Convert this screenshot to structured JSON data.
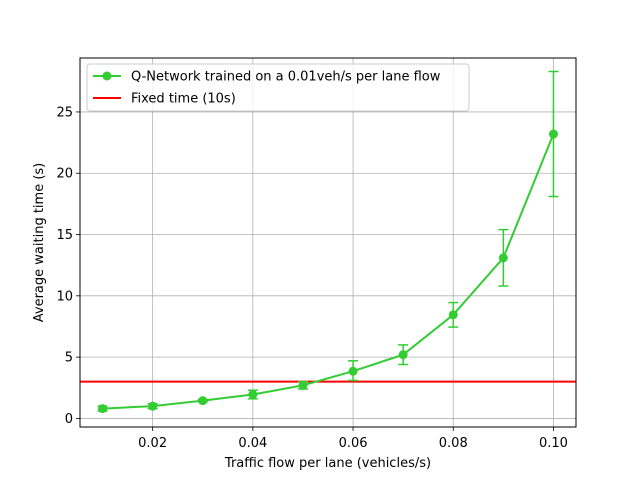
{
  "chart_data": {
    "type": "line",
    "title": "",
    "xlabel": "Traffic flow per lane (vehicles/s)",
    "ylabel": "Average waiting time (s)",
    "xlim": [
      0.0055,
      0.1045
    ],
    "ylim": [
      -0.7,
      29.4
    ],
    "xticks": [
      0.02,
      0.04,
      0.06,
      0.08,
      0.1
    ],
    "xtick_labels": [
      "0.02",
      "0.04",
      "0.06",
      "0.08",
      "0.10"
    ],
    "yticks": [
      0,
      5,
      10,
      15,
      20,
      25
    ],
    "ytick_labels": [
      "0",
      "5",
      "10",
      "15",
      "20",
      "25"
    ],
    "grid": true,
    "legend_position": "top-left",
    "series": [
      {
        "name": "Q-Network trained on a 0.01veh/s per lane flow",
        "color": "#33cc33",
        "marker": "circle",
        "x": [
          0.01,
          0.02,
          0.03,
          0.04,
          0.05,
          0.06,
          0.07,
          0.08,
          0.09,
          0.1
        ],
        "y": [
          0.8,
          1.0,
          1.45,
          1.95,
          2.7,
          3.85,
          5.2,
          8.45,
          13.1,
          23.2
        ],
        "err_low": [
          0.6,
          0.8,
          1.35,
          1.6,
          2.4,
          3.1,
          4.4,
          7.45,
          10.8,
          18.1
        ],
        "err_high": [
          1.0,
          1.2,
          1.55,
          2.3,
          3.0,
          4.7,
          6.0,
          9.45,
          15.4,
          28.3
        ]
      },
      {
        "name": "Fixed time (10s)",
        "color": "#ff0000",
        "type": "hline",
        "y": 3.0
      }
    ]
  }
}
